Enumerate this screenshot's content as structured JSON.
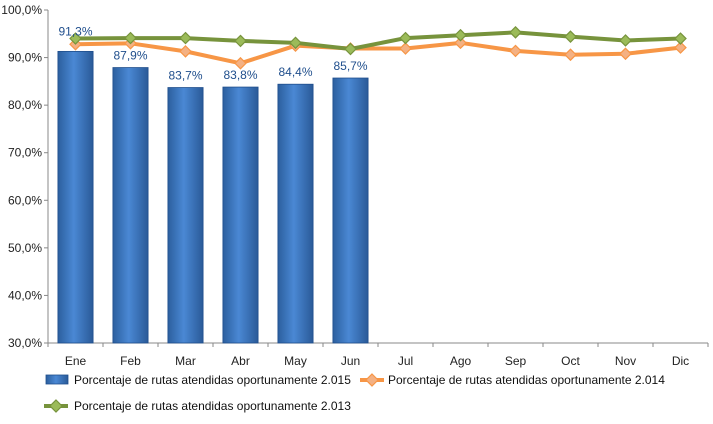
{
  "chart_data": {
    "type": "bar+line",
    "categories": [
      "Ene",
      "Feb",
      "Mar",
      "Abr",
      "May",
      "Jun",
      "Jul",
      "Ago",
      "Sep",
      "Oct",
      "Nov",
      "Dic"
    ],
    "ylim": [
      30,
      100
    ],
    "yticks": [
      30,
      40,
      50,
      60,
      70,
      80,
      90,
      100
    ],
    "ytick_labels": [
      "30,0%",
      "40,0%",
      "50,0%",
      "60,0%",
      "70,0%",
      "80,0%",
      "90,0%",
      "100,0%"
    ],
    "title": "",
    "xlabel": "",
    "ylabel": "",
    "grid": false,
    "legend_position": "bottom",
    "series": [
      {
        "name": "Porcentaje de rutas atendidas oportunamente 2.015",
        "kind": "bar",
        "color": "#3a78c8",
        "values": [
          91.3,
          87.9,
          83.7,
          83.8,
          84.4,
          85.7,
          null,
          null,
          null,
          null,
          null,
          null
        ],
        "labels": [
          "91,3%",
          "87,9%",
          "83,7%",
          "83,8%",
          "84,4%",
          "85,7%",
          "",
          "",
          "",
          "",
          "",
          ""
        ]
      },
      {
        "name": "Porcentaje de rutas atendidas oportunamente 2.014",
        "kind": "line",
        "color": "#f79646",
        "marker_color": "#f4b183",
        "values": [
          92.8,
          93.0,
          91.3,
          88.8,
          92.5,
          91.9,
          91.9,
          93.1,
          91.4,
          90.6,
          90.8,
          92.1
        ]
      },
      {
        "name": "Porcentaje de rutas atendidas oportunamente 2.013",
        "kind": "line",
        "color": "#77933c",
        "marker_color": "#9bbb59",
        "values": [
          94.0,
          94.1,
          94.1,
          93.5,
          93.1,
          91.8,
          94.1,
          94.7,
          95.3,
          94.4,
          93.6,
          94.0
        ]
      }
    ]
  }
}
